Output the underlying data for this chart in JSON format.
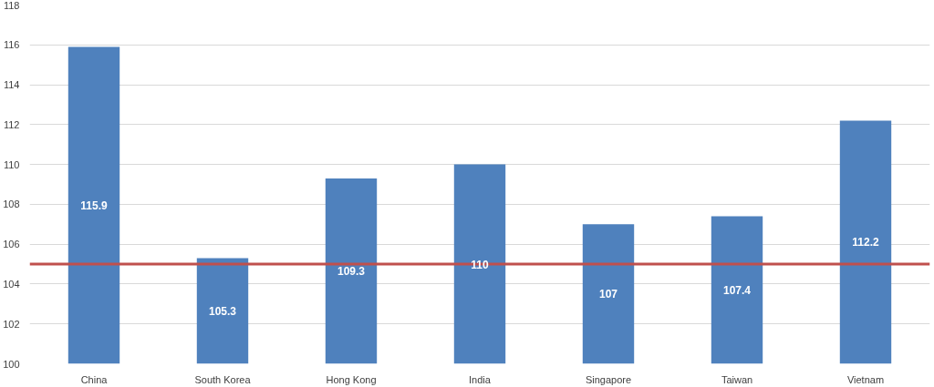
{
  "chart_data": {
    "type": "bar",
    "categories": [
      "China",
      "South Korea",
      "Hong Kong",
      "India",
      "Singapore",
      "Taiwan",
      "Vietnam"
    ],
    "values": [
      115.9,
      105.3,
      109.3,
      110,
      107,
      107.4,
      112.2
    ],
    "color": "#4f81bd",
    "ylim": [
      100,
      118
    ],
    "yticks": [
      100,
      102,
      104,
      106,
      108,
      110,
      112,
      114,
      116,
      118
    ],
    "grid": "y",
    "data_labels": true,
    "ref_lines": [
      {
        "axis": "y",
        "value": 105,
        "color": "#c0504d"
      }
    ]
  }
}
